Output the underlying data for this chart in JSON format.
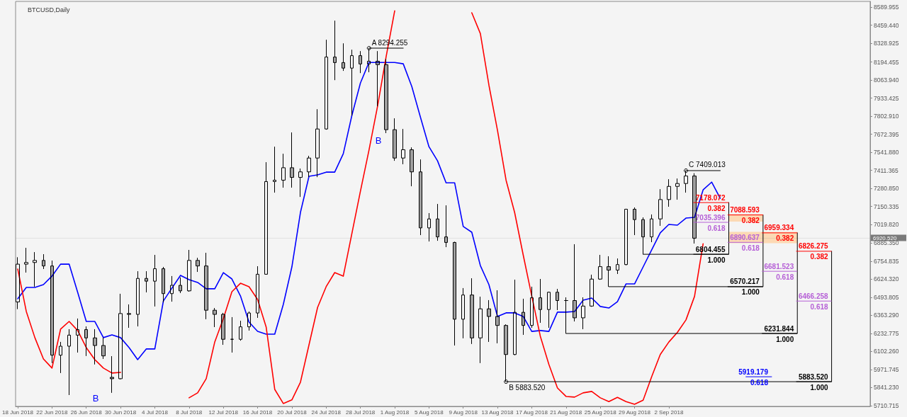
{
  "chart_data": {
    "type": "candlestick",
    "title": "BTCUSD,Daily",
    "x": [
      "2018-06-18",
      "2018-06-19",
      "2018-06-20",
      "2018-06-21",
      "2018-06-22",
      "2018-06-23",
      "2018-06-24",
      "2018-06-25",
      "2018-06-26",
      "2018-06-27",
      "2018-06-28",
      "2018-06-29",
      "2018-06-30",
      "2018-07-01",
      "2018-07-02",
      "2018-07-03",
      "2018-07-04",
      "2018-07-05",
      "2018-07-06",
      "2018-07-07",
      "2018-07-08",
      "2018-07-09",
      "2018-07-10",
      "2018-07-11",
      "2018-07-12",
      "2018-07-13",
      "2018-07-14",
      "2018-07-15",
      "2018-07-16",
      "2018-07-17",
      "2018-07-18",
      "2018-07-19",
      "2018-07-20",
      "2018-07-21",
      "2018-07-22",
      "2018-07-23",
      "2018-07-24",
      "2018-07-25",
      "2018-07-26",
      "2018-07-27",
      "2018-07-28",
      "2018-07-29",
      "2018-07-30",
      "2018-07-31",
      "2018-08-01",
      "2018-08-02",
      "2018-08-03",
      "2018-08-04",
      "2018-08-05",
      "2018-08-06",
      "2018-08-07",
      "2018-08-08",
      "2018-08-09",
      "2018-08-10",
      "2018-08-11",
      "2018-08-12",
      "2018-08-13",
      "2018-08-14",
      "2018-08-15",
      "2018-08-16",
      "2018-08-17",
      "2018-08-18",
      "2018-08-19",
      "2018-08-20",
      "2018-08-21",
      "2018-08-22",
      "2018-08-23",
      "2018-08-24",
      "2018-08-25",
      "2018-08-26",
      "2018-08-27",
      "2018-08-28",
      "2018-08-29",
      "2018-08-30",
      "2018-08-31",
      "2018-09-01",
      "2018-09-02",
      "2018-09-03",
      "2018-09-04",
      "2018-09-05"
    ],
    "ohlc": [
      [
        6460,
        6783,
        6408,
        6733
      ],
      [
        6733,
        6851,
        6672,
        6745
      ],
      [
        6745,
        6820,
        6570,
        6760
      ],
      [
        6760,
        6805,
        6698,
        6720
      ],
      [
        6720,
        6759,
        6018,
        6075
      ],
      [
        6075,
        6171,
        5946,
        6140
      ],
      [
        6140,
        6263,
        5787,
        6220
      ],
      [
        6220,
        6340,
        6094,
        6260
      ],
      [
        6260,
        6283,
        6069,
        6200
      ],
      [
        6200,
        6263,
        6008,
        6145
      ],
      [
        6145,
        6202,
        6048,
        6070
      ],
      [
        5915,
        6068,
        5803,
        5905
      ],
      [
        5905,
        6519,
        5900,
        6376
      ],
      [
        6376,
        6442,
        6273,
        6370
      ],
      [
        6370,
        6682,
        6283,
        6630
      ],
      [
        6630,
        6682,
        6529,
        6610
      ],
      [
        6610,
        6800,
        6427,
        6700
      ],
      [
        6700,
        6713,
        6457,
        6520
      ],
      [
        6520,
        6647,
        6462,
        6580
      ],
      [
        6580,
        6637,
        6524,
        6540
      ],
      [
        6540,
        6836,
        6534,
        6760
      ],
      [
        6760,
        6779,
        6677,
        6720
      ],
      [
        6720,
        6815,
        6335,
        6400
      ],
      [
        6400,
        6416,
        6278,
        6370
      ],
      [
        6370,
        6381,
        6150,
        6190
      ],
      [
        6190,
        6350,
        6094,
        6190
      ],
      [
        6190,
        6324,
        6180,
        6280
      ],
      [
        6280,
        6391,
        6253,
        6380
      ],
      [
        6380,
        6718,
        6345,
        6660
      ],
      [
        6660,
        7470,
        6657,
        7330
      ],
      [
        7330,
        7582,
        7250,
        7340
      ],
      [
        7340,
        7531,
        7286,
        7430
      ],
      [
        7430,
        7685,
        7286,
        7360
      ],
      [
        7360,
        7424,
        7219,
        7400
      ],
      [
        7400,
        7516,
        7362,
        7500
      ],
      [
        7500,
        7853,
        7362,
        7710
      ],
      [
        7710,
        8355,
        7705,
        8230
      ],
      [
        8230,
        8493,
        8063,
        8190
      ],
      [
        8190,
        8329,
        8130,
        8150
      ],
      [
        8150,
        8283,
        7807,
        8240
      ],
      [
        8240,
        8273,
        8114,
        8180
      ],
      [
        8180,
        8294.255,
        8120,
        8200
      ],
      [
        8200,
        8273,
        7874,
        8175
      ],
      [
        8175,
        8216,
        7680,
        7705
      ],
      [
        7705,
        7787,
        7480,
        7500
      ],
      [
        7500,
        7710,
        7455,
        7560
      ],
      [
        7560,
        7577,
        7296,
        7400
      ],
      [
        7400,
        7490,
        6943,
        6995
      ],
      [
        6995,
        7102,
        6897,
        7060
      ],
      [
        7060,
        7168,
        6902,
        6930
      ],
      [
        6930,
        7158,
        6856,
        6890
      ],
      [
        6890,
        6895,
        6145,
        6335
      ],
      [
        6335,
        6560,
        6197,
        6510
      ],
      [
        6510,
        6631,
        6156,
        6200
      ],
      [
        6200,
        6498,
        6018,
        6410
      ],
      [
        6410,
        6473,
        6171,
        6355
      ],
      [
        6355,
        6544,
        6161,
        6290
      ],
      [
        6290,
        6298,
        5883.52,
        6080
      ],
      [
        6080,
        6621,
        6075,
        6385
      ],
      [
        6385,
        6483,
        6222,
        6290
      ],
      [
        6290,
        6570,
        6273,
        6490
      ],
      [
        6490,
        6626,
        6309,
        6405
      ],
      [
        6405,
        6534,
        6273,
        6530
      ],
      [
        6530,
        6554,
        6401,
        6470
      ],
      [
        6470,
        6493,
        6231.844,
        6470
      ],
      [
        6470,
        6877,
        6319,
        6345
      ],
      [
        6345,
        6493,
        6263,
        6430
      ],
      [
        6430,
        6657,
        6425,
        6625
      ],
      [
        6625,
        6800,
        6620,
        6715
      ],
      [
        6715,
        6790,
        6570.217,
        6690
      ],
      [
        6690,
        6774,
        6662,
        6730
      ],
      [
        6730,
        7133,
        6725,
        7130
      ],
      [
        7130,
        7143,
        6943,
        7055
      ],
      [
        7055,
        7071,
        6804.455,
        6930
      ],
      [
        6930,
        7092,
        6892,
        7060
      ],
      [
        7060,
        7275,
        7010,
        7200
      ],
      [
        7200,
        7347,
        7148,
        7295
      ],
      [
        7295,
        7352,
        7199,
        7316
      ],
      [
        7316,
        7409.013,
        7250,
        7370
      ],
      [
        7370,
        7390,
        6882,
        6920.52
      ]
    ],
    "color": "#000000",
    "series": [
      {
        "type": "line",
        "color": "#0000ff",
        "x": [
          "2018-06-18",
          "2018-06-19",
          "2018-06-20",
          "2018-06-21",
          "2018-06-22",
          "2018-06-23",
          "2018-06-24",
          "2018-06-25",
          "2018-06-26",
          "2018-06-27",
          "2018-06-28",
          "2018-06-29",
          "2018-06-30",
          "2018-07-01",
          "2018-07-02",
          "2018-07-03",
          "2018-07-04",
          "2018-07-05",
          "2018-07-06",
          "2018-07-07",
          "2018-07-08",
          "2018-07-09",
          "2018-07-10",
          "2018-07-11",
          "2018-07-12",
          "2018-07-13",
          "2018-07-14",
          "2018-07-15",
          "2018-07-16",
          "2018-07-17",
          "2018-07-18",
          "2018-07-19",
          "2018-07-20",
          "2018-07-21",
          "2018-07-22",
          "2018-07-23",
          "2018-07-24",
          "2018-07-25",
          "2018-07-26",
          "2018-07-27",
          "2018-07-28",
          "2018-07-29",
          "2018-07-30",
          "2018-07-31",
          "2018-08-01",
          "2018-08-02",
          "2018-08-03",
          "2018-08-04",
          "2018-08-05",
          "2018-08-06",
          "2018-08-07",
          "2018-08-08",
          "2018-08-09",
          "2018-08-10",
          "2018-08-11",
          "2018-08-12",
          "2018-08-13",
          "2018-08-14",
          "2018-08-15",
          "2018-08-16",
          "2018-08-17",
          "2018-08-18",
          "2018-08-19",
          "2018-08-20",
          "2018-08-21",
          "2018-08-22",
          "2018-08-23",
          "2018-08-24",
          "2018-08-25",
          "2018-08-26",
          "2018-08-27",
          "2018-08-28",
          "2018-08-29",
          "2018-08-30",
          "2018-08-31",
          "2018-09-01",
          "2018-09-02",
          "2018-09-03",
          "2018-09-04",
          "2018-09-05",
          "2018-09-06",
          "2018-09-07",
          "2018-09-08"
        ],
        "values": [
          6483,
          6565,
          6565,
          6585,
          6647,
          6733,
          6733,
          6529,
          6319,
          6319,
          6202,
          6222,
          6202,
          6130,
          6043,
          6120,
          6120,
          6467,
          6560,
          6652,
          6621,
          6601,
          6555,
          6555,
          6672,
          6626,
          6503,
          6314,
          6247,
          6227,
          6227,
          6442,
          6713,
          7107,
          7368,
          7378,
          7398,
          7398,
          7531,
          7807,
          8042,
          8191,
          8191,
          8191,
          8191,
          8181,
          8017,
          7797,
          7582,
          7480,
          7321,
          7321,
          7005,
          6964,
          6723,
          6585,
          6355,
          6381,
          6381,
          6355,
          6247,
          6253,
          6247,
          6386,
          6386,
          6391,
          6473,
          6488,
          6427,
          6416,
          6462,
          6590,
          6590,
          6713,
          6836,
          6959,
          7020,
          7015,
          7066,
          7071,
          7270,
          7326,
          7209
        ]
      },
      {
        "type": "line",
        "color": "#ff0000",
        "x": [
          "2018-06-18",
          "2018-06-19",
          "2018-06-20",
          "2018-06-21",
          "2018-06-22",
          "2018-06-23",
          "2018-06-24",
          "2018-06-25",
          "2018-06-26",
          "2018-06-27",
          "2018-06-28",
          "2018-06-29",
          "2018-06-30",
          "2018-07-01",
          "2018-07-02",
          "2018-07-03",
          "2018-07-04",
          "2018-07-05",
          "2018-07-06",
          "2018-07-07",
          "2018-07-08",
          "2018-07-09",
          "2018-07-10",
          "2018-07-11",
          "2018-07-12",
          "2018-07-13",
          "2018-07-14",
          "2018-07-15",
          "2018-07-16",
          "2018-07-17",
          "2018-07-18",
          "2018-07-19",
          "2018-07-20",
          "2018-07-21",
          "2018-07-22",
          "2018-07-23",
          "2018-07-24",
          "2018-07-25",
          "2018-07-26",
          "2018-07-27",
          "2018-07-28",
          "2018-07-29",
          "2018-07-30",
          "2018-07-31",
          "2018-08-01",
          "2018-08-02",
          "2018-08-03",
          "2018-08-04",
          "2018-08-05",
          "2018-08-06",
          "2018-08-07",
          "2018-08-08",
          "2018-08-09",
          "2018-08-10",
          "2018-08-11",
          "2018-08-12",
          "2018-08-13",
          "2018-08-14",
          "2018-08-15",
          "2018-08-16",
          "2018-08-17",
          "2018-08-18",
          "2018-08-19",
          "2018-08-20",
          "2018-08-21",
          "2018-08-22",
          "2018-08-23",
          "2018-08-24",
          "2018-08-25",
          "2018-08-26",
          "2018-08-27",
          "2018-08-28",
          "2018-08-29",
          "2018-08-30",
          "2018-08-31",
          "2018-09-01",
          "2018-09-02",
          "2018-09-03",
          "2018-09-04",
          "2018-09-05",
          "2018-09-06"
        ],
        "values": [
          6698,
          6391,
          6202,
          6048,
          5982,
          6263,
          6319,
          6253,
          6130,
          6043,
          5982,
          5946,
          5951,
          null,
          null,
          null,
          null,
          null,
          null,
          null,
          5767,
          5803,
          5905,
          6171,
          6340,
          6534,
          6595,
          6570,
          6478,
          6278,
          5828,
          5726,
          5752,
          5880,
          6150,
          6420,
          6570,
          6672,
          6646,
          6953,
          7260,
          7557,
          7874,
          8232,
          8564,
          null,
          null,
          null,
          null,
          null,
          null,
          null,
          null,
          8550,
          8400,
          8027,
          7700,
          7340,
          7107,
          6800,
          6503,
          6212,
          6008,
          5838,
          5777,
          5772,
          5803,
          5813,
          5767,
          5740,
          5770,
          5740,
          5720,
          5750,
          5920,
          6080,
          6170,
          6240,
          6330,
          6500,
          6880
        ]
      },
      {
        "type": "line",
        "color": "#000000",
        "x": [
          "2018-07-29",
          "2018-08-02"
        ],
        "values": [
          8294.255,
          8294.255
        ]
      },
      {
        "type": "line",
        "color": "#000000",
        "x": [
          "2018-09-04",
          "2018-09-08"
        ],
        "values": [
          7409.013,
          7409.013
        ]
      },
      {
        "type": "line",
        "color": "#000000",
        "x": [
          "2018-08-30",
          "2018-09-09",
          "2018-09-09"
        ],
        "values": [
          6804.455,
          6804.455,
          7178.072
        ]
      },
      {
        "type": "line",
        "color": "#000000",
        "x": [
          "2018-08-26",
          "2018-09-13",
          "2018-09-13"
        ],
        "values": [
          6570.217,
          6570.217,
          7088.593
        ]
      },
      {
        "type": "line",
        "color": "#000000",
        "x": [
          "2018-08-21",
          "2018-09-17",
          "2018-09-17"
        ],
        "values": [
          6231.844,
          6231.844,
          6959.334
        ]
      },
      {
        "type": "line",
        "color": "#000000",
        "x": [
          "2018-08-14",
          "2018-09-21",
          "2018-09-21"
        ],
        "values": [
          5883.52,
          5883.52,
          6826.275
        ]
      },
      {
        "type": "line",
        "color": "#0000ff",
        "x": [
          "2018-09-11T00:00",
          "2018-09-14T00:00"
        ],
        "values": [
          5919.179,
          5919.179
        ]
      }
    ],
    "xlim": [
      "2018-06-17T18:00",
      "2018-09-25T12:00"
    ],
    "xticks": [
      {
        "value": "2018-06-18",
        "label": "18 Jun 2018"
      },
      {
        "value": "2018-06-22",
        "label": "22 Jun 2018"
      },
      {
        "value": "2018-06-26",
        "label": "26 Jun 2018"
      },
      {
        "value": "2018-06-30",
        "label": "30 Jun 2018"
      },
      {
        "value": "2018-07-04",
        "label": "4 Jul 2018"
      },
      {
        "value": "2018-07-08",
        "label": "8 Jul 2018"
      },
      {
        "value": "2018-07-12",
        "label": "12 Jul 2018"
      },
      {
        "value": "2018-07-16",
        "label": "16 Jul 2018"
      },
      {
        "value": "2018-07-20",
        "label": "20 Jul 2018"
      },
      {
        "value": "2018-07-24",
        "label": "24 Jul 2018"
      },
      {
        "value": "2018-07-28",
        "label": "28 Jul 2018"
      },
      {
        "value": "2018-08-01",
        "label": "1 Aug 2018"
      },
      {
        "value": "2018-08-05",
        "label": "5 Aug 2018"
      },
      {
        "value": "2018-08-09",
        "label": "9 Aug 2018"
      },
      {
        "value": "2018-08-13",
        "label": "13 Aug 2018"
      },
      {
        "value": "2018-08-17",
        "label": "17 Aug 2018"
      },
      {
        "value": "2018-08-21",
        "label": "21 Aug 2018"
      },
      {
        "value": "2018-08-25",
        "label": "25 Aug 2018"
      },
      {
        "value": "2018-08-29",
        "label": "29 Aug 2018"
      },
      {
        "value": "2018-09-02",
        "label": "2 Sep 2018"
      }
    ],
    "ylim": [
      5705,
      8632
    ],
    "yticks": [
      8589.955,
      {
        "value": 8459.44,
        "label": "8459.440"
      },
      8328.925,
      8194.455,
      {
        "value": 8063.94,
        "label": "8063.940"
      },
      7933.425,
      {
        "value": 7802.91,
        "label": "7802.910"
      },
      7672.395,
      {
        "value": 7541.88,
        "label": "7541.880"
      },
      7411.365,
      {
        "value": 7280.85,
        "label": "7280.850"
      },
      7150.335,
      {
        "value": 7019.82,
        "label": "7019.820"
      },
      {
        "value": 6885.35,
        "label": "6885.350"
      },
      6754.835,
      {
        "value": 6624.32,
        "label": "6624.320"
      },
      6493.805,
      {
        "value": 6363.29,
        "label": "6363.290"
      },
      6232.775,
      {
        "value": 6102.26,
        "label": "6102.260"
      },
      5971.745,
      {
        "value": 5841.23,
        "label": "5841.230"
      },
      5710.715
    ],
    "ref_lines": [
      {
        "axis": "y",
        "value": 6920.52,
        "label": "6920.520"
      }
    ],
    "bands": [
      {
        "axis": "y",
        "from": 7040,
        "to": 7094,
        "color": "#fcd9b4"
      },
      {
        "axis": "y",
        "from": 6885,
        "to": 6966,
        "color": "#fcd9b4"
      }
    ],
    "annotations": [
      {
        "text": "A 8294.255",
        "x": "2018-07-29",
        "y": 8294.255
      },
      {
        "text": "B 5883.520",
        "x": "2018-08-14",
        "y": 5883.52
      },
      {
        "text": "C 7409.013",
        "x": "2018-09-04",
        "y": 7409.013
      },
      "B",
      "B",
      {
        "text": "7178.072",
        "x": "2018-09-09",
        "y": 7178.072
      },
      {
        "text": "0.382",
        "x": "2018-09-09",
        "y": 7178.072
      },
      {
        "text": "7035.396",
        "x": "2018-09-09",
        "y": 7035.396
      },
      {
        "text": "0.618",
        "x": "2018-09-09",
        "y": 7035.396
      },
      {
        "text": "6804.455",
        "x": "2018-09-09",
        "y": 6804.455
      },
      {
        "text": "1.000",
        "x": "2018-09-09",
        "y": 6804.455
      },
      {
        "text": "7088.593",
        "x": "2018-09-13",
        "y": 7088.593
      },
      {
        "text": "0.382",
        "x": "2018-09-13",
        "y": 7088.593
      },
      {
        "text": "6890.637",
        "x": "2018-09-13",
        "y": 6890.637
      },
      {
        "text": "0.618",
        "x": "2018-09-13",
        "y": 6890.637
      },
      {
        "text": "6570.217",
        "x": "2018-09-13",
        "y": 6570.217
      },
      {
        "text": "1.000",
        "x": "2018-09-13",
        "y": 6570.217
      },
      {
        "text": "6959.334",
        "x": "2018-09-17",
        "y": 6959.334
      },
      {
        "text": "0.382",
        "x": "2018-09-17",
        "y": 6959.334
      },
      {
        "text": "6681.523",
        "x": "2018-09-17",
        "y": 6681.523
      },
      {
        "text": "0.618",
        "x": "2018-09-17",
        "y": 6681.523
      },
      {
        "text": "6231.844",
        "x": "2018-09-17",
        "y": 6231.844
      },
      {
        "text": "1.000",
        "x": "2018-09-17",
        "y": 6231.844
      },
      {
        "text": "6826.275",
        "x": "2018-09-21",
        "y": 6826.275
      },
      {
        "text": "0.382",
        "x": "2018-09-21",
        "y": 6826.275
      },
      {
        "text": "6466.258",
        "x": "2018-09-21",
        "y": 6466.258
      },
      {
        "text": "0.618",
        "x": "2018-09-21",
        "y": 6466.258
      },
      {
        "text": "5883.520",
        "x": "2018-09-21",
        "y": 5883.52
      },
      {
        "text": "1.000",
        "x": "2018-09-21",
        "y": 5883.52
      },
      {
        "text": "5919.179",
        "x": "2018-09-14",
        "y": 5919.179
      },
      {
        "text": "0.618",
        "x": "2018-09-14",
        "y": 5919.179
      }
    ],
    "grid": false,
    "marker": "none",
    "line_style": "solid"
  }
}
